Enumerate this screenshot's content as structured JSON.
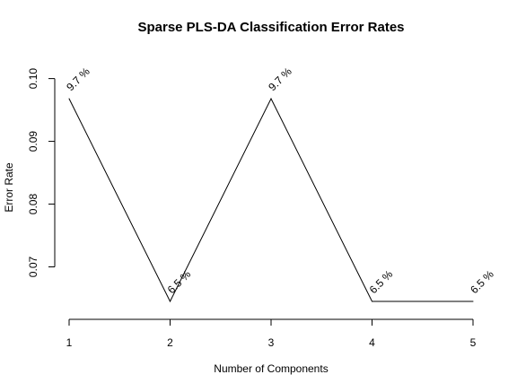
{
  "chart_data": {
    "type": "line",
    "title": "Sparse PLS-DA Classification Error Rates",
    "xlabel": "Number of Components",
    "ylabel": "Error Rate",
    "x": [
      1,
      2,
      3,
      4,
      5
    ],
    "y": [
      0.0968,
      0.0645,
      0.0968,
      0.0645,
      0.0645
    ],
    "point_labels": [
      "9.7 %",
      "6.5 %",
      "9.7 %",
      "6.5 %",
      "6.5 %"
    ],
    "xlim": [
      1,
      5
    ],
    "ylim": [
      0.0645,
      0.0968
    ],
    "x_ticks": [
      1,
      2,
      3,
      4,
      5
    ],
    "x_tick_labels": [
      "1",
      "2",
      "3",
      "4",
      "5"
    ],
    "y_ticks": [
      0.07,
      0.08,
      0.09,
      0.1
    ],
    "y_tick_labels": [
      "0.07",
      "0.08",
      "0.09",
      "0.10"
    ],
    "grid": false,
    "line_color": "#000000"
  }
}
